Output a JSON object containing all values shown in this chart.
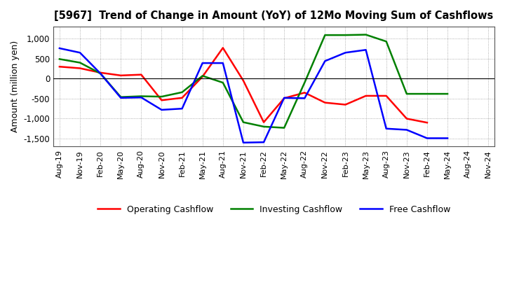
{
  "title": "[5967]  Trend of Change in Amount (YoY) of 12Mo Moving Sum of Cashflows",
  "ylabel": "Amount (million yen)",
  "xlabels": [
    "Aug-19",
    "Nov-19",
    "Feb-20",
    "May-20",
    "Aug-20",
    "Nov-20",
    "Feb-21",
    "May-21",
    "Aug-21",
    "Nov-21",
    "Feb-22",
    "May-22",
    "Aug-22",
    "Nov-22",
    "Feb-23",
    "May-23",
    "Aug-23",
    "Nov-23",
    "Feb-24",
    "May-24",
    "Aug-24",
    "Nov-24"
  ],
  "operating": [
    300,
    260,
    150,
    80,
    100,
    -540,
    -480,
    50,
    770,
    -50,
    -1090,
    -490,
    -350,
    -600,
    -650,
    -430,
    -430,
    -1000,
    -1100,
    null,
    null,
    null
  ],
  "investing": [
    490,
    400,
    130,
    -460,
    -440,
    -450,
    -340,
    70,
    -100,
    -1090,
    -1200,
    -1230,
    -100,
    1090,
    1090,
    1100,
    930,
    -380,
    -380,
    -380,
    null,
    null
  ],
  "free": [
    760,
    650,
    130,
    -480,
    -470,
    -780,
    -750,
    390,
    390,
    -1600,
    -1590,
    -480,
    -490,
    440,
    650,
    720,
    -1250,
    -1280,
    -1490,
    -1490,
    null,
    null
  ],
  "colors": {
    "operating": "#ff0000",
    "investing": "#008000",
    "free": "#0000ff"
  },
  "ylim": [
    -1700,
    1300
  ],
  "yticks": [
    -1500,
    -1000,
    -500,
    0,
    500,
    1000
  ],
  "background": "#ffffff",
  "grid_color": "#999999"
}
